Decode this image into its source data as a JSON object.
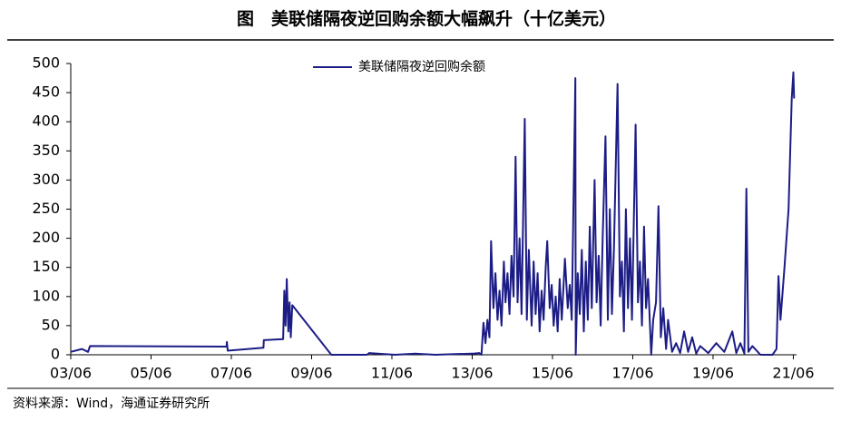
{
  "chart_data": {
    "type": "line",
    "title": "图　美联储隔夜逆回购余额大幅飙升（十亿美元）",
    "source": "资料来源：Wind，海通证券研究所",
    "legend": "top",
    "xlim": [
      2003.42,
      2021.5
    ],
    "ylim": [
      0,
      500
    ],
    "yticks": [
      0,
      50,
      100,
      150,
      200,
      250,
      300,
      350,
      400,
      450,
      500
    ],
    "xticks": [
      {
        "value": 2003.42,
        "label": "03/06"
      },
      {
        "value": 2005.42,
        "label": "05/06"
      },
      {
        "value": 2007.42,
        "label": "07/06"
      },
      {
        "value": 2009.42,
        "label": "09/06"
      },
      {
        "value": 2011.42,
        "label": "11/06"
      },
      {
        "value": 2013.42,
        "label": "13/06"
      },
      {
        "value": 2015.42,
        "label": "15/06"
      },
      {
        "value": 2017.42,
        "label": "17/06"
      },
      {
        "value": 2019.42,
        "label": "19/06"
      },
      {
        "value": 2021.42,
        "label": "21/06"
      }
    ],
    "x": [
      2003.42,
      2003.7,
      2003.85,
      2003.9,
      2007.3,
      2007.31,
      2007.33,
      2008.22,
      2008.23,
      2008.71,
      2008.74,
      2008.77,
      2008.8,
      2008.84,
      2008.87,
      2008.9,
      2008.94,
      2009.91,
      2010.8,
      2010.85,
      2011.5,
      2012.0,
      2012.5,
      2013.4,
      2013.45,
      2013.6,
      2013.65,
      2013.7,
      2013.75,
      2013.8,
      2013.85,
      2013.89,
      2013.95,
      2014.0,
      2014.05,
      2014.1,
      2014.15,
      2014.21,
      2014.25,
      2014.3,
      2014.35,
      2014.4,
      2014.45,
      2014.5,
      2014.55,
      2014.6,
      2014.65,
      2014.73,
      2014.78,
      2014.83,
      2014.9,
      2014.95,
      2015.0,
      2015.05,
      2015.1,
      2015.15,
      2015.2,
      2015.25,
      2015.29,
      2015.35,
      2015.4,
      2015.45,
      2015.5,
      2015.55,
      2015.6,
      2015.65,
      2015.73,
      2015.8,
      2015.85,
      2015.9,
      2015.99,
      2016.0,
      2016.05,
      2016.1,
      2016.15,
      2016.2,
      2016.25,
      2016.3,
      2016.35,
      2016.4,
      2016.47,
      2016.52,
      2016.57,
      2016.62,
      2016.67,
      2016.74,
      2016.8,
      2016.85,
      2016.9,
      2016.95,
      2017.04,
      2017.1,
      2017.15,
      2017.2,
      2017.25,
      2017.3,
      2017.35,
      2017.4,
      2017.49,
      2017.55,
      2017.6,
      2017.65,
      2017.7,
      2017.75,
      2017.8,
      2017.88,
      2017.93,
      2018.0,
      2018.06,
      2018.12,
      2018.18,
      2018.25,
      2018.3,
      2018.4,
      2018.5,
      2018.6,
      2018.7,
      2018.8,
      2018.9,
      2019.0,
      2019.1,
      2019.3,
      2019.5,
      2019.7,
      2019.9,
      2020.0,
      2020.1,
      2020.2,
      2020.25,
      2020.3,
      2020.4,
      2020.6,
      2020.9,
      2021.0,
      2021.05,
      2021.1,
      2021.2,
      2021.3,
      2021.38,
      2021.42,
      2021.44
    ],
    "series": [
      {
        "name": "美联储隔夜逆回购余额",
        "color": "#1c1c86",
        "values": [
          5,
          10,
          5,
          15,
          14,
          22,
          7,
          12,
          25,
          27,
          110,
          50,
          130,
          40,
          90,
          30,
          85,
          0,
          0,
          3,
          0,
          2,
          0,
          2,
          2,
          3,
          0,
          55,
          20,
          60,
          30,
          195,
          80,
          140,
          60,
          110,
          50,
          160,
          90,
          140,
          70,
          170,
          100,
          340,
          90,
          200,
          70,
          405,
          60,
          180,
          50,
          160,
          70,
          140,
          40,
          110,
          60,
          150,
          195,
          80,
          120,
          50,
          100,
          40,
          130,
          60,
          165,
          80,
          120,
          60,
          475,
          0,
          140,
          70,
          180,
          40,
          160,
          60,
          220,
          80,
          300,
          90,
          170,
          50,
          200,
          375,
          60,
          250,
          70,
          180,
          465,
          100,
          160,
          40,
          250,
          80,
          200,
          60,
          395,
          90,
          160,
          50,
          220,
          80,
          130,
          0,
          60,
          90,
          255,
          30,
          80,
          10,
          60,
          5,
          20,
          3,
          40,
          5,
          30,
          2,
          15,
          3,
          20,
          5,
          40,
          3,
          20,
          2,
          285,
          5,
          15,
          0,
          0,
          10,
          135,
          60,
          150,
          250,
          440,
          485,
          440
        ]
      }
    ]
  }
}
